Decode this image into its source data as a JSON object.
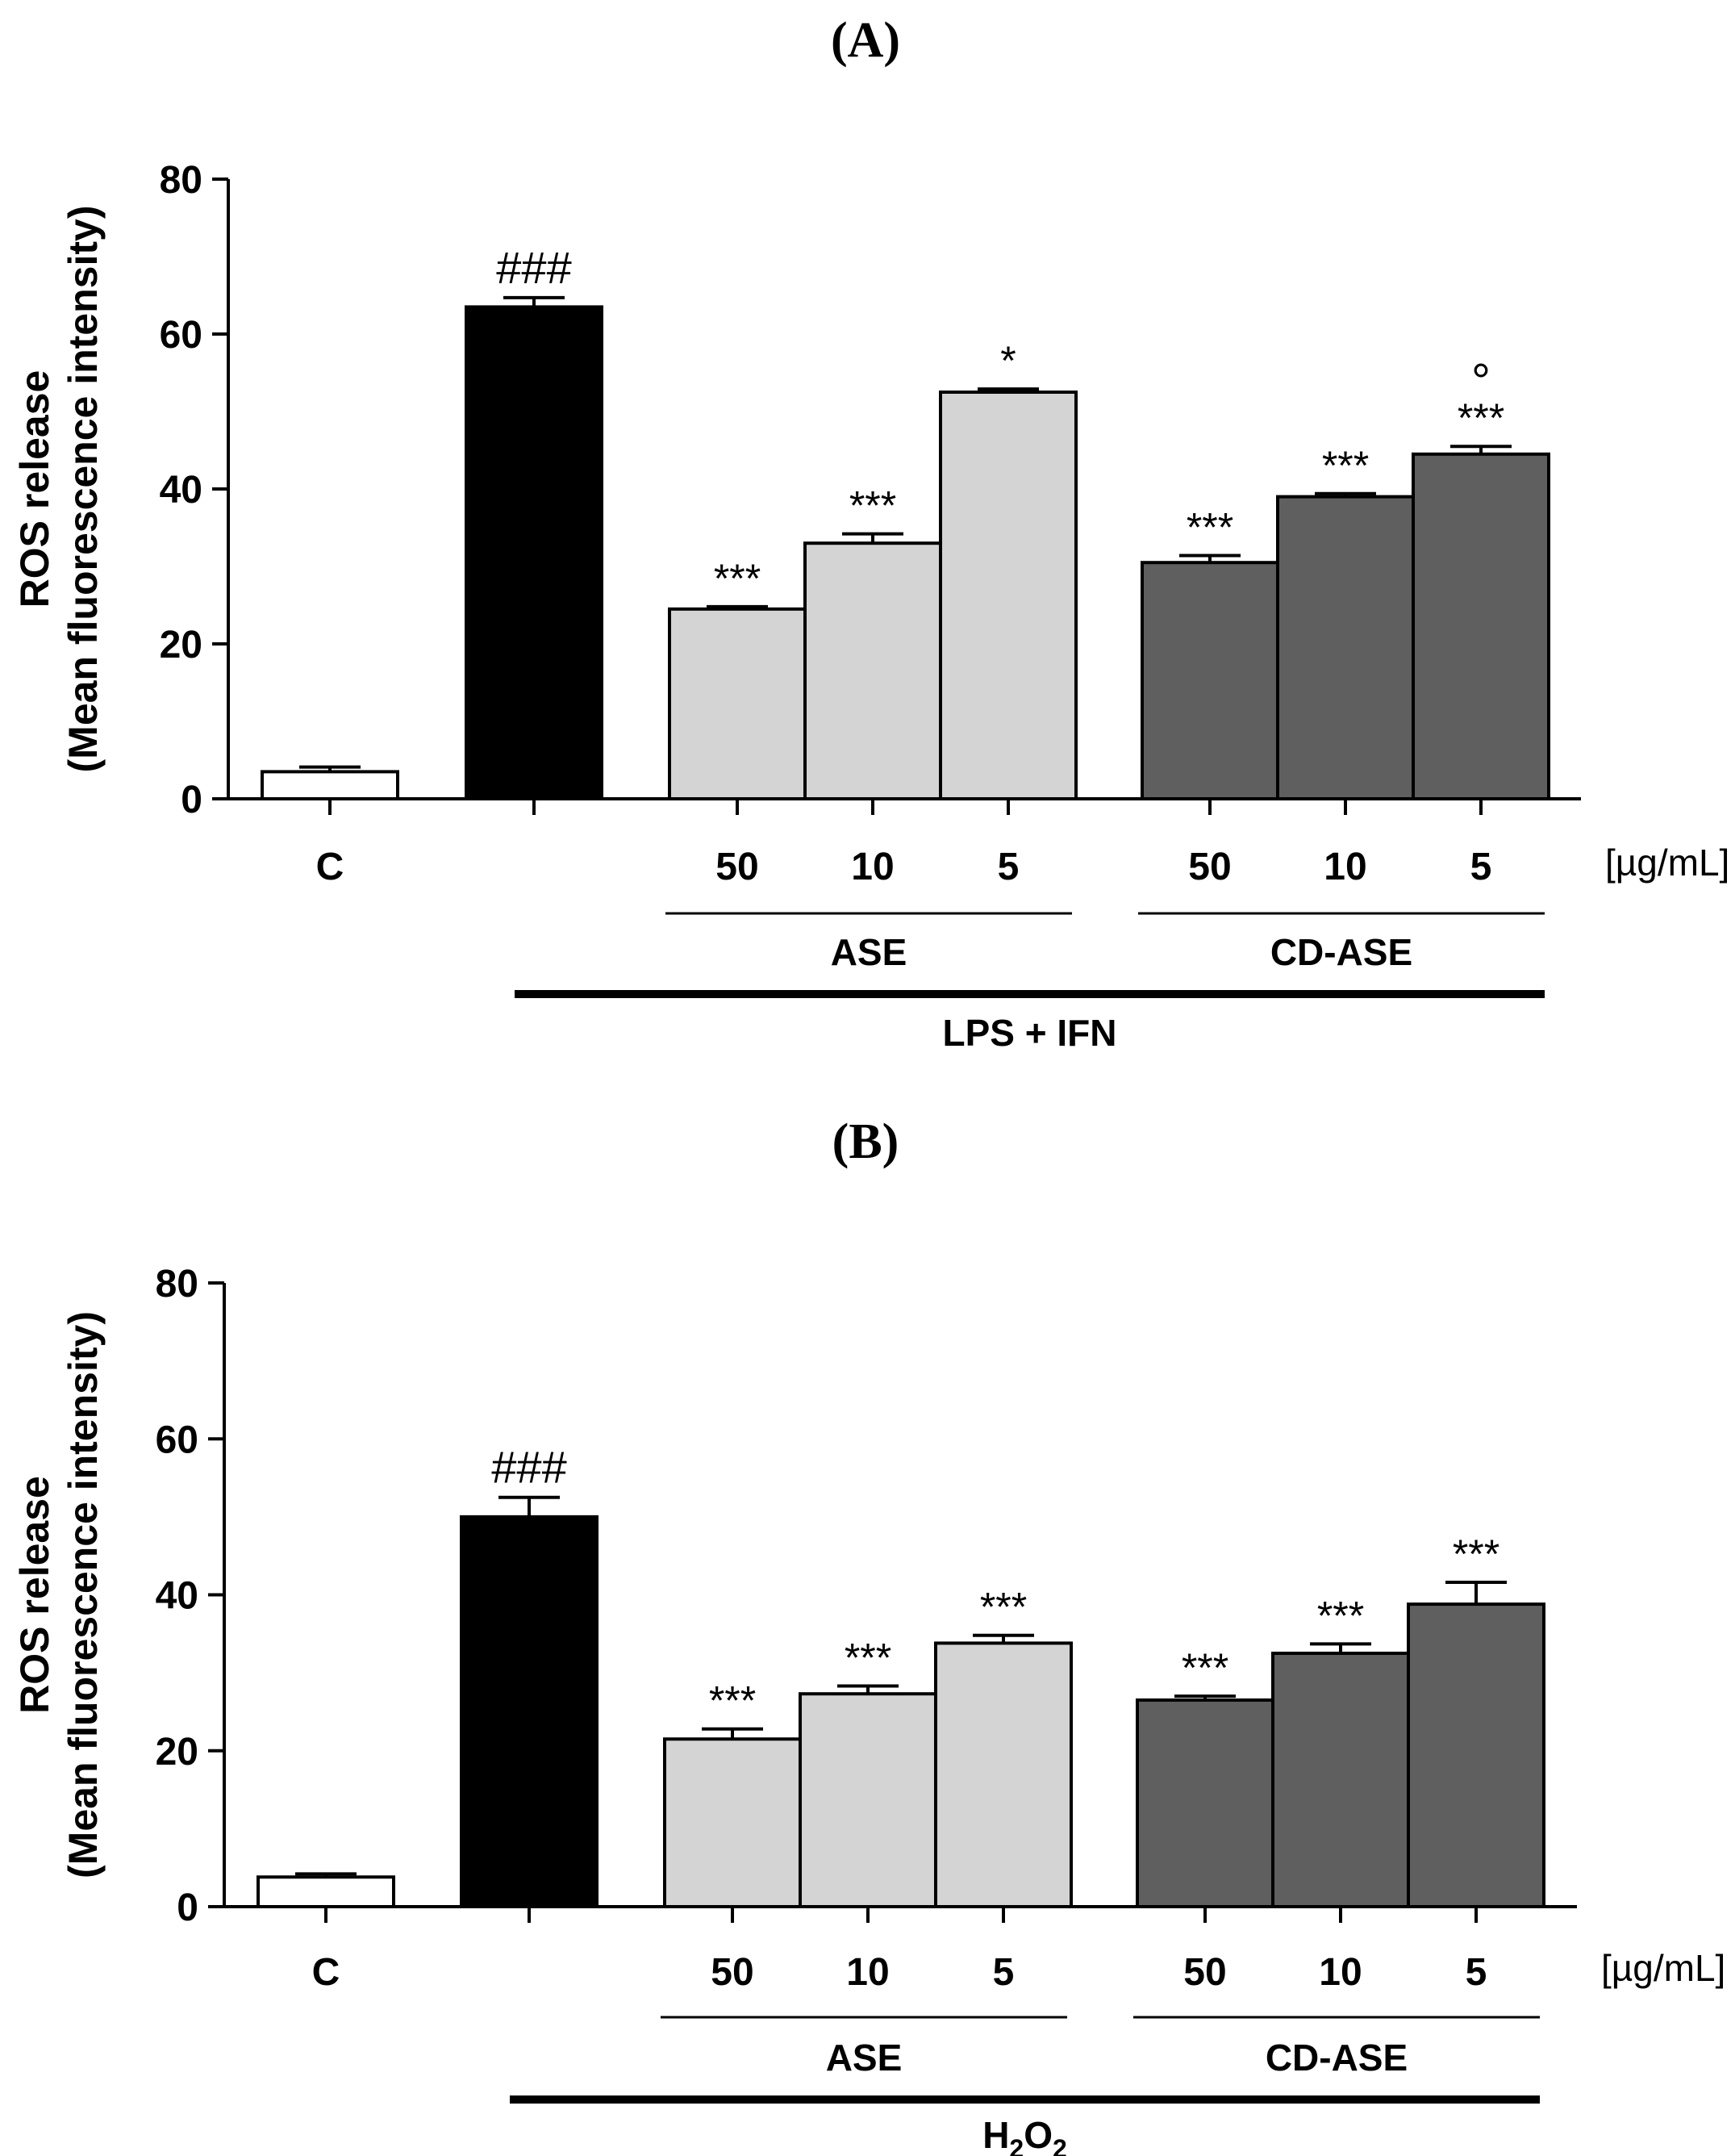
{
  "chart_data": [
    {
      "type": "bar",
      "panel_label": "(A)",
      "ylabel_line1": "ROS release",
      "ylabel_line2": "(Mean fluorescence intensity)",
      "ylim": [
        0,
        80
      ],
      "yticks": [
        "0",
        "20",
        "40",
        "60",
        "80"
      ],
      "unit_label": "[µg/mL]",
      "categories": [
        "C",
        "",
        "50",
        "10",
        "5",
        "50",
        "10",
        "5"
      ],
      "values": [
        3.5,
        63.5,
        24.5,
        33,
        52.5,
        30.5,
        39,
        44.5
      ],
      "errors": [
        0.6,
        1.2,
        0.3,
        1.2,
        0.4,
        0.9,
        0.4,
        1.0
      ],
      "groups": [
        {
          "name": "ASE",
          "from": 2,
          "to": 4
        },
        {
          "name": "CD-ASE",
          "from": 5,
          "to": 7
        }
      ],
      "treatment": {
        "main": "LPS + IFN",
        "sub": "",
        "from": 1,
        "to": 7
      },
      "significance": [
        "",
        "###",
        "***",
        "***",
        "*",
        "***",
        "***",
        "***"
      ],
      "extra_marks": [
        "",
        "",
        "",
        "",
        "",
        "",
        "",
        "°"
      ],
      "colors": [
        "#ffffff",
        "#000000",
        "#d4d4d4",
        "#d4d4d4",
        "#d4d4d4",
        "#5f5f5f",
        "#5f5f5f",
        "#5f5f5f"
      ]
    },
    {
      "type": "bar",
      "panel_label": "(B)",
      "ylabel_line1": "ROS release",
      "ylabel_line2": "(Mean fluorescence intensity)",
      "ylim": [
        0,
        80
      ],
      "yticks": [
        "0",
        "20",
        "40",
        "60",
        "80"
      ],
      "unit_label": "[µg/mL]",
      "categories": [
        "C",
        "",
        "50",
        "10",
        "5",
        "50",
        "10",
        "5"
      ],
      "values": [
        3.8,
        50,
        21.5,
        27.3,
        33.8,
        26.5,
        32.5,
        38.8
      ],
      "errors": [
        0.4,
        2.5,
        1.3,
        1.0,
        1.0,
        0.5,
        1.2,
        2.8
      ],
      "groups": [
        {
          "name": "ASE",
          "from": 2,
          "to": 4
        },
        {
          "name": "CD-ASE",
          "from": 5,
          "to": 7
        }
      ],
      "treatment": {
        "main": "H",
        "sub": "2",
        "main2": "O",
        "sub2": "2",
        "from": 1,
        "to": 7
      },
      "significance": [
        "",
        "###",
        "***",
        "***",
        "***",
        "***",
        "***",
        "***"
      ],
      "extra_marks": [
        "",
        "",
        "",
        "",
        "",
        "",
        "",
        ""
      ],
      "colors": [
        "#ffffff",
        "#000000",
        "#d4d4d4",
        "#d4d4d4",
        "#d4d4d4",
        "#5f5f5f",
        "#5f5f5f",
        "#5f5f5f"
      ]
    }
  ]
}
